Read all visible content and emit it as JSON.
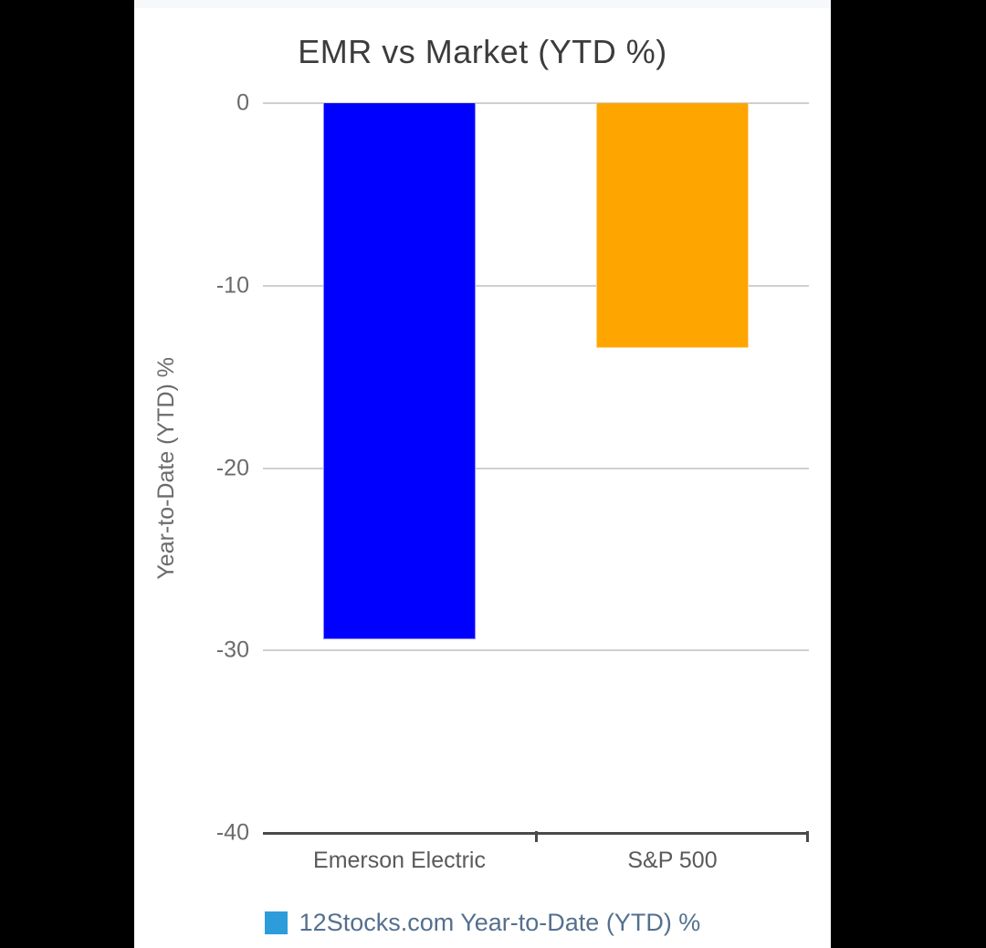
{
  "page": {
    "background": "#000000",
    "card_background": "#ffffff",
    "top_strip_color": "#f7f8f9"
  },
  "chart_data": {
    "type": "bar",
    "title": "EMR vs Market (YTD %)",
    "categories": [
      "Emerson Electric",
      "S&P 500"
    ],
    "values": [
      -29.4,
      -13.4
    ],
    "bar_colors": [
      "#0000ff",
      "#ffa500"
    ],
    "xlabel": "",
    "ylabel": "Year-to-Date (YTD) %",
    "ylim": [
      -40,
      0
    ],
    "yticks": [
      0,
      -10,
      -20,
      -30,
      -40
    ],
    "grid": true,
    "legend_position": "bottom",
    "legend": {
      "label": "12Stocks.com Year-to-Date (YTD) %",
      "swatch_color": "#2d9cdb"
    },
    "colors": {
      "gridline": "#cfcfcf",
      "axis_line": "#4a4a4a",
      "title_text": "#3c3c3c",
      "tick_text": "#6b6b6b",
      "category_text": "#5a5a5a",
      "legend_text": "#54708e"
    }
  }
}
